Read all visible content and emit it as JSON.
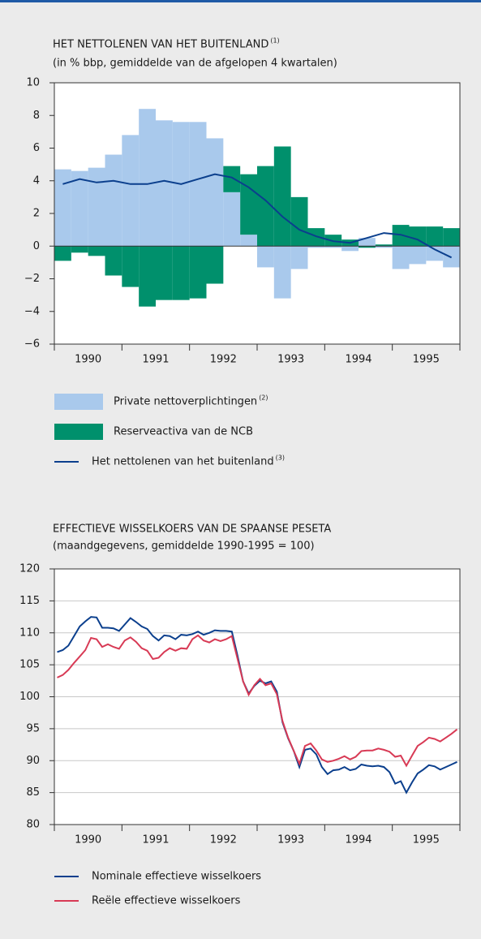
{
  "chart_data": [
    {
      "type": "bar",
      "title": "HET NETTOLENEN VAN HET BUITENLAND",
      "title_note": "(1)",
      "subtitle": "(in % bbp, gemiddelde van de afgelopen 4 kwartalen)",
      "x": [
        1990.125,
        1990.375,
        1990.625,
        1990.875,
        1991.125,
        1991.375,
        1991.625,
        1991.875,
        1992.125,
        1992.375,
        1992.625,
        1992.875,
        1993.125,
        1993.375,
        1993.625,
        1993.875,
        1994.125,
        1994.375,
        1994.625,
        1994.875,
        1995.125,
        1995.375,
        1995.625,
        1995.875
      ],
      "xlim": [
        1990,
        1996
      ],
      "xticks": [
        {
          "value": 1990.5,
          "label": "1990"
        },
        {
          "value": 1991.5,
          "label": "1991"
        },
        {
          "value": 1992.5,
          "label": "1992"
        },
        {
          "value": 1993.5,
          "label": "1993"
        },
        {
          "value": 1994.5,
          "label": "1994"
        },
        {
          "value": 1995.5,
          "label": "1995"
        }
      ],
      "ylim": [
        -6,
        10
      ],
      "yticks": [
        10,
        8,
        6,
        4,
        2,
        0,
        {
          "value": -2,
          "label": "−2"
        },
        {
          "value": -4,
          "label": "−4"
        },
        {
          "value": -6,
          "label": "−6"
        }
      ],
      "series": [
        {
          "name": "Private nettoverplichtingen",
          "note": "(2)",
          "type": "bar",
          "color": "#a9c9ec",
          "values": [
            4.7,
            4.6,
            4.8,
            5.6,
            6.8,
            8.4,
            7.7,
            7.6,
            7.6,
            6.6,
            3.3,
            0.7,
            -1.3,
            -3.2,
            -1.4,
            -0.1,
            -0.1,
            -0.3,
            0.5,
            -0.1,
            -1.4,
            -1.1,
            -0.9,
            -1.3
          ]
        },
        {
          "name": "Reserveactiva van de NCB",
          "type": "bar",
          "color": "#00906c",
          "values": [
            -0.9,
            -0.4,
            -0.6,
            -1.8,
            -2.5,
            -3.7,
            -3.3,
            -3.3,
            -3.2,
            -2.3,
            1.6,
            3.7,
            4.9,
            6.1,
            3.0,
            1.1,
            0.7,
            0.4,
            -0.1,
            0.1,
            1.3,
            1.2,
            1.2,
            1.1
          ]
        },
        {
          "name": "Het nettolenen van het buitenland",
          "note": "(3)",
          "type": "line",
          "color": "#0b3f8d",
          "values": [
            3.8,
            4.1,
            3.9,
            4.0,
            3.8,
            3.8,
            4.0,
            3.8,
            4.1,
            4.4,
            4.2,
            3.6,
            2.8,
            1.8,
            1.0,
            0.6,
            0.3,
            0.2,
            0.5,
            0.8,
            0.7,
            0.4,
            -0.2,
            -0.7
          ]
        }
      ]
    },
    {
      "type": "line",
      "title": "EFFECTIEVE WISSELKOERS VAN DE SPAANSE PESETA",
      "subtitle": "(maandgegevens, gemiddelde 1990-1995 = 100)",
      "x": [
        1990.042,
        1990.125,
        1990.208,
        1990.292,
        1990.375,
        1990.458,
        1990.542,
        1990.625,
        1990.708,
        1990.792,
        1990.875,
        1990.958,
        1991.042,
        1991.125,
        1991.208,
        1991.292,
        1991.375,
        1991.458,
        1991.542,
        1991.625,
        1991.708,
        1991.792,
        1991.875,
        1991.958,
        1992.042,
        1992.125,
        1992.208,
        1992.292,
        1992.375,
        1992.458,
        1992.542,
        1992.625,
        1992.708,
        1992.792,
        1992.875,
        1992.958,
        1993.042,
        1993.125,
        1993.208,
        1993.292,
        1993.375,
        1993.458,
        1993.542,
        1993.625,
        1993.708,
        1993.792,
        1993.875,
        1993.958,
        1994.042,
        1994.125,
        1994.208,
        1994.292,
        1994.375,
        1994.458,
        1994.542,
        1994.625,
        1994.708,
        1994.792,
        1994.875,
        1994.958,
        1995.042,
        1995.125,
        1995.208,
        1995.292,
        1995.375,
        1995.458,
        1995.542,
        1995.625,
        1995.708,
        1995.792,
        1995.875,
        1995.958
      ],
      "xlim": [
        1990,
        1996
      ],
      "xticks": [
        {
          "value": 1990.5,
          "label": "1990"
        },
        {
          "value": 1991.5,
          "label": "1991"
        },
        {
          "value": 1992.5,
          "label": "1992"
        },
        {
          "value": 1993.5,
          "label": "1993"
        },
        {
          "value": 1994.5,
          "label": "1994"
        },
        {
          "value": 1995.5,
          "label": "1995"
        }
      ],
      "ylim": [
        80,
        120
      ],
      "yticks": [
        120,
        115,
        110,
        105,
        100,
        95,
        90,
        85,
        80
      ],
      "grid": true,
      "series": [
        {
          "name": "Nominale effectieve wisselkoers",
          "color": "#0b3f8d",
          "values": [
            107,
            107.3,
            108,
            109.5,
            111,
            111.8,
            112.5,
            112.4,
            110.8,
            110.8,
            110.7,
            110.3,
            111.3,
            112.3,
            111.7,
            111,
            110.6,
            109.5,
            108.8,
            109.6,
            109.5,
            109,
            109.7,
            109.6,
            109.8,
            110.2,
            109.7,
            110,
            110.4,
            110.3,
            110.3,
            110.2,
            106.5,
            102.4,
            100.5,
            101.7,
            102.5,
            102.1,
            102.4,
            100.8,
            96,
            93.5,
            91.5,
            89,
            91.7,
            91.9,
            91,
            89,
            87.9,
            88.5,
            88.6,
            89,
            88.5,
            88.7,
            89.4,
            89.2,
            89.1,
            89.2,
            89,
            88.2,
            86.4,
            86.8,
            85,
            86.6,
            88,
            88.6,
            89.3,
            89.1,
            88.6,
            89,
            89.4,
            89.8
          ]
        },
        {
          "name": "Reële effectieve wisselkoers",
          "color": "#d83a55",
          "values": [
            103,
            103.4,
            104.2,
            105.3,
            106.3,
            107.3,
            109.2,
            109,
            107.8,
            108.2,
            107.8,
            107.5,
            108.8,
            109.3,
            108.6,
            107.6,
            107.2,
            105.9,
            106.1,
            107,
            107.6,
            107.2,
            107.6,
            107.5,
            109,
            109.6,
            108.8,
            108.5,
            109,
            108.7,
            109,
            109.5,
            106,
            102.4,
            100.3,
            101.8,
            102.8,
            101.8,
            102.1,
            100.4,
            96.2,
            93.6,
            91.5,
            89.5,
            92.3,
            92.7,
            91.6,
            90.2,
            89.8,
            90,
            90.3,
            90.7,
            90.2,
            90.6,
            91.5,
            91.6,
            91.6,
            91.9,
            91.7,
            91.4,
            90.6,
            90.8,
            89.2,
            90.8,
            92.3,
            92.9,
            93.6,
            93.4,
            93,
            93.6,
            94.2,
            94.9
          ]
        }
      ]
    }
  ]
}
